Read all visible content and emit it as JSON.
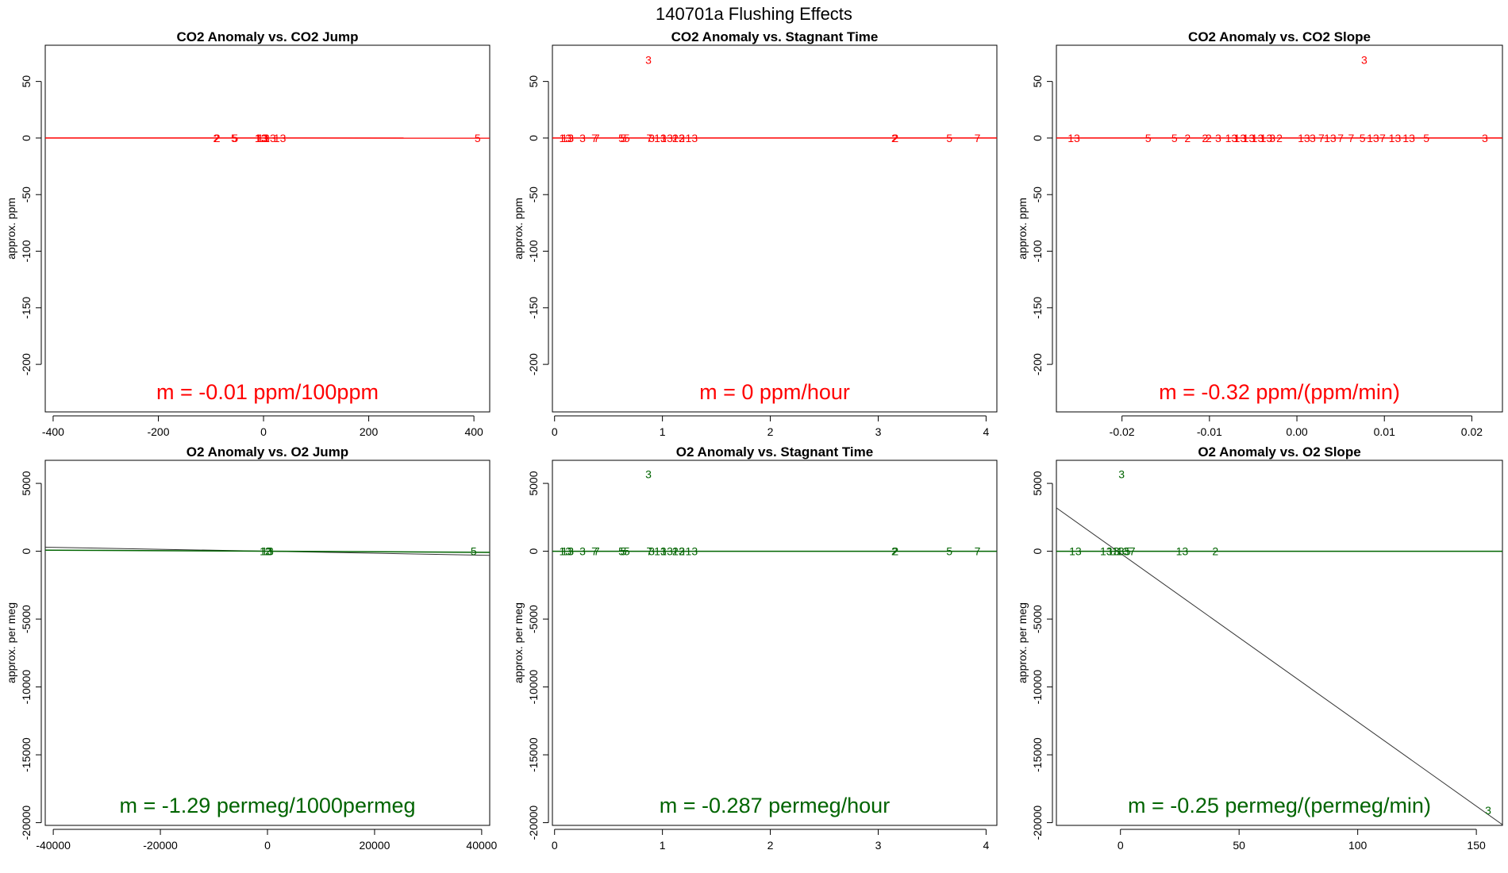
{
  "figure": {
    "title": "140701a   Flushing Effects"
  },
  "colors": {
    "co2": "#ff0000",
    "o2": "#006400",
    "fit": "#333333",
    "frame": "#000000"
  },
  "chart_data": [
    {
      "type": "scatter",
      "title": "CO2 Anomaly vs. CO2 Jump",
      "ylabel": "approx. ppm",
      "xlabel": "",
      "xlim": [
        -415,
        430
      ],
      "ylim": [
        -242,
        82
      ],
      "xticks": [
        -400,
        -200,
        0,
        200,
        400
      ],
      "yticks": [
        50,
        0,
        -50,
        -100,
        -150,
        -200
      ],
      "color_key": "co2",
      "slope_text": "m = -0.01 ppm/100ppm",
      "points": [
        {
          "x": -90,
          "y": 0,
          "label": "2"
        },
        {
          "x": -88,
          "y": 0,
          "label": "2"
        },
        {
          "x": -56,
          "y": 0,
          "label": "5"
        },
        {
          "x": -54,
          "y": 0,
          "label": "5"
        },
        {
          "x": -5,
          "y": 0,
          "label": "13"
        },
        {
          "x": -3,
          "y": 0,
          "label": "13"
        },
        {
          "x": 0,
          "y": 0,
          "label": "13"
        },
        {
          "x": 2,
          "y": 0,
          "label": "3"
        },
        {
          "x": 12,
          "y": 0,
          "label": "13"
        },
        {
          "x": 31,
          "y": 0,
          "label": "13"
        },
        {
          "x": 407,
          "y": 0,
          "label": "5"
        }
      ],
      "lines": [
        {
          "x1": -415,
          "y1": 0.0415,
          "x2": 430,
          "y2": -0.043,
          "color_key": "co2"
        }
      ]
    },
    {
      "type": "scatter",
      "title": "CO2 Anomaly vs. Stagnant Time",
      "ylabel": "approx. ppm",
      "xlabel": "",
      "xlim": [
        -0.02,
        4.1
      ],
      "ylim": [
        -242,
        82
      ],
      "xticks": [
        0,
        1,
        2,
        3,
        4
      ],
      "yticks": [
        50,
        0,
        -50,
        -100,
        -150,
        -200
      ],
      "color_key": "co2",
      "slope_text": "m = 0 ppm/hour",
      "points": [
        {
          "x": 0.87,
          "y": 69,
          "label": "3"
        },
        {
          "x": 0.1,
          "y": 0,
          "label": "13"
        },
        {
          "x": 0.12,
          "y": 0,
          "label": "13"
        },
        {
          "x": 0.15,
          "y": 0,
          "label": "3"
        },
        {
          "x": 0.26,
          "y": 0,
          "label": "3"
        },
        {
          "x": 0.37,
          "y": 0,
          "label": "7"
        },
        {
          "x": 0.39,
          "y": 0,
          "label": "7"
        },
        {
          "x": 0.62,
          "y": 0,
          "label": "5"
        },
        {
          "x": 0.64,
          "y": 0,
          "label": "5"
        },
        {
          "x": 0.67,
          "y": 0,
          "label": "5"
        },
        {
          "x": 0.88,
          "y": 0,
          "label": "7"
        },
        {
          "x": 0.9,
          "y": 0,
          "label": "3"
        },
        {
          "x": 0.98,
          "y": 0,
          "label": "13"
        },
        {
          "x": 1.04,
          "y": 0,
          "label": "13"
        },
        {
          "x": 1.12,
          "y": 0,
          "label": "2"
        },
        {
          "x": 1.15,
          "y": 0,
          "label": "13"
        },
        {
          "x": 1.18,
          "y": 0,
          "label": "2"
        },
        {
          "x": 1.27,
          "y": 0,
          "label": "13"
        },
        {
          "x": 3.15,
          "y": 0,
          "label": "2"
        },
        {
          "x": 3.16,
          "y": 0,
          "label": "2"
        },
        {
          "x": 3.66,
          "y": 0,
          "label": "5"
        },
        {
          "x": 3.92,
          "y": 0,
          "label": "7"
        }
      ],
      "lines": [
        {
          "x1": -0.02,
          "y1": 0,
          "x2": 4.1,
          "y2": 0,
          "color_key": "co2"
        }
      ]
    },
    {
      "type": "scatter",
      "title": "CO2 Anomaly vs. CO2 Slope",
      "ylabel": "approx. ppm",
      "xlabel": "",
      "xlim": [
        -0.0275,
        0.0235
      ],
      "ylim": [
        -242,
        82
      ],
      "xticks": [
        -0.02,
        -0.01,
        0.0,
        0.01,
        0.02
      ],
      "xtick_labels": [
        "-0.02",
        "-0.01",
        "0.00",
        "0.01",
        "0.02"
      ],
      "yticks": [
        50,
        0,
        -50,
        -100,
        -150,
        -200
      ],
      "color_key": "co2",
      "slope_text": "m = -0.32 ppm/(ppm/min)",
      "points": [
        {
          "x": 0.0077,
          "y": 69,
          "label": "3"
        },
        {
          "x": -0.0255,
          "y": 0,
          "label": "13"
        },
        {
          "x": -0.017,
          "y": 0,
          "label": "5"
        },
        {
          "x": -0.014,
          "y": 0,
          "label": "5"
        },
        {
          "x": -0.0125,
          "y": 0,
          "label": "2"
        },
        {
          "x": -0.0105,
          "y": 0,
          "label": "2"
        },
        {
          "x": -0.0101,
          "y": 0,
          "label": "2"
        },
        {
          "x": -0.009,
          "y": 0,
          "label": "3"
        },
        {
          "x": -0.0075,
          "y": 0,
          "label": "13"
        },
        {
          "x": -0.0065,
          "y": 0,
          "label": "13"
        },
        {
          "x": -0.0055,
          "y": 0,
          "label": "13"
        },
        {
          "x": -0.0045,
          "y": 0,
          "label": "13"
        },
        {
          "x": -0.0035,
          "y": 0,
          "label": "13"
        },
        {
          "x": -0.0028,
          "y": 0,
          "label": "3"
        },
        {
          "x": -0.002,
          "y": 0,
          "label": "2"
        },
        {
          "x": 0.0008,
          "y": 0,
          "label": "13"
        },
        {
          "x": 0.0018,
          "y": 0,
          "label": "3"
        },
        {
          "x": 0.0028,
          "y": 0,
          "label": "7"
        },
        {
          "x": 0.0038,
          "y": 0,
          "label": "13"
        },
        {
          "x": 0.005,
          "y": 0,
          "label": "7"
        },
        {
          "x": 0.0062,
          "y": 0,
          "label": "7"
        },
        {
          "x": 0.0075,
          "y": 0,
          "label": "5"
        },
        {
          "x": 0.0087,
          "y": 0,
          "label": "13"
        },
        {
          "x": 0.0098,
          "y": 0,
          "label": "7"
        },
        {
          "x": 0.0112,
          "y": 0,
          "label": "13"
        },
        {
          "x": 0.0128,
          "y": 0,
          "label": "13"
        },
        {
          "x": 0.0148,
          "y": 0,
          "label": "5"
        },
        {
          "x": 0.0215,
          "y": 0,
          "label": "3"
        }
      ],
      "lines": [
        {
          "x1": -0.0275,
          "y1": 0,
          "x2": 0.0235,
          "y2": 0,
          "color_key": "co2"
        }
      ]
    },
    {
      "type": "scatter",
      "title": "O2 Anomaly vs. O2 Jump",
      "ylabel": "approx. per meg",
      "xlabel": "",
      "xlim": [
        -41500,
        41500
      ],
      "ylim": [
        -20200,
        6700
      ],
      "xticks": [
        -40000,
        -20000,
        0,
        20000,
        40000
      ],
      "yticks": [
        5000,
        0,
        -5000,
        -10000,
        -15000,
        -20000
      ],
      "color_key": "o2",
      "slope_text": "m = -1.29 permeg/1000permeg",
      "points": [
        {
          "x": -300,
          "y": 0,
          "label": "13"
        },
        {
          "x": 0,
          "y": 0,
          "label": "13"
        },
        {
          "x": 300,
          "y": 0,
          "label": "3"
        },
        {
          "x": 100,
          "y": 0,
          "label": "2"
        },
        {
          "x": 38500,
          "y": 0,
          "label": "5"
        }
      ],
      "lines": [
        {
          "x1": -41500,
          "y1": 300,
          "x2": 41500,
          "y2": -300,
          "color_key": "fit"
        },
        {
          "x1": -41500,
          "y1": 80,
          "x2": 41500,
          "y2": -80,
          "color_key": "o2"
        }
      ]
    },
    {
      "type": "scatter",
      "title": "O2 Anomaly vs. Stagnant Time",
      "ylabel": "approx. per meg",
      "xlabel": "",
      "xlim": [
        -0.02,
        4.1
      ],
      "ylim": [
        -20200,
        6700
      ],
      "xticks": [
        0,
        1,
        2,
        3,
        4
      ],
      "yticks": [
        5000,
        0,
        -5000,
        -10000,
        -15000,
        -20000
      ],
      "color_key": "o2",
      "slope_text": "m = -0.287 permeg/hour",
      "points": [
        {
          "x": 0.87,
          "y": 5680,
          "label": "3"
        },
        {
          "x": 0.1,
          "y": 0,
          "label": "13"
        },
        {
          "x": 0.12,
          "y": 0,
          "label": "13"
        },
        {
          "x": 0.15,
          "y": 0,
          "label": "3"
        },
        {
          "x": 0.26,
          "y": 0,
          "label": "3"
        },
        {
          "x": 0.37,
          "y": 0,
          "label": "7"
        },
        {
          "x": 0.39,
          "y": 0,
          "label": "7"
        },
        {
          "x": 0.62,
          "y": 0,
          "label": "5"
        },
        {
          "x": 0.64,
          "y": 0,
          "label": "5"
        },
        {
          "x": 0.67,
          "y": 0,
          "label": "5"
        },
        {
          "x": 0.88,
          "y": 0,
          "label": "7"
        },
        {
          "x": 0.9,
          "y": 0,
          "label": "3"
        },
        {
          "x": 0.98,
          "y": 0,
          "label": "13"
        },
        {
          "x": 1.04,
          "y": 0,
          "label": "13"
        },
        {
          "x": 1.12,
          "y": 0,
          "label": "2"
        },
        {
          "x": 1.15,
          "y": 0,
          "label": "13"
        },
        {
          "x": 1.18,
          "y": 0,
          "label": "2"
        },
        {
          "x": 1.27,
          "y": 0,
          "label": "13"
        },
        {
          "x": 3.15,
          "y": 0,
          "label": "2"
        },
        {
          "x": 3.16,
          "y": 0,
          "label": "2"
        },
        {
          "x": 3.66,
          "y": 0,
          "label": "5"
        },
        {
          "x": 3.92,
          "y": 0,
          "label": "7"
        }
      ],
      "lines": [
        {
          "x1": -0.02,
          "y1": 0,
          "x2": 4.1,
          "y2": 0,
          "color_key": "o2"
        }
      ]
    },
    {
      "type": "scatter",
      "title": "O2 Anomaly vs. O2 Slope",
      "ylabel": "approx. per meg",
      "xlabel": "",
      "xlim": [
        -27,
        161
      ],
      "ylim": [
        -20200,
        6700
      ],
      "xticks": [
        0,
        50,
        100,
        150
      ],
      "yticks": [
        5000,
        0,
        -5000,
        -10000,
        -15000,
        -20000
      ],
      "color_key": "o2",
      "slope_text": "m = -0.25 permeg/(permeg/min)",
      "points": [
        {
          "x": 0.5,
          "y": 5680,
          "label": "3"
        },
        {
          "x": -19,
          "y": 0,
          "label": "13"
        },
        {
          "x": -6,
          "y": 0,
          "label": "13"
        },
        {
          "x": -3,
          "y": 0,
          "label": "13"
        },
        {
          "x": -1,
          "y": 0,
          "label": "13"
        },
        {
          "x": 1,
          "y": 0,
          "label": "13"
        },
        {
          "x": 3,
          "y": 0,
          "label": "5"
        },
        {
          "x": 5,
          "y": 0,
          "label": "7"
        },
        {
          "x": 26,
          "y": 0,
          "label": "13"
        },
        {
          "x": 40,
          "y": 0,
          "label": "2"
        },
        {
          "x": 155,
          "y": -19100,
          "label": "3"
        }
      ],
      "lines": [
        {
          "x1": -27,
          "y1": 3200,
          "x2": 161,
          "y2": -20150,
          "color_key": "fit"
        },
        {
          "x1": -27,
          "y1": 0,
          "x2": 161,
          "y2": 0,
          "color_key": "o2"
        }
      ]
    }
  ]
}
